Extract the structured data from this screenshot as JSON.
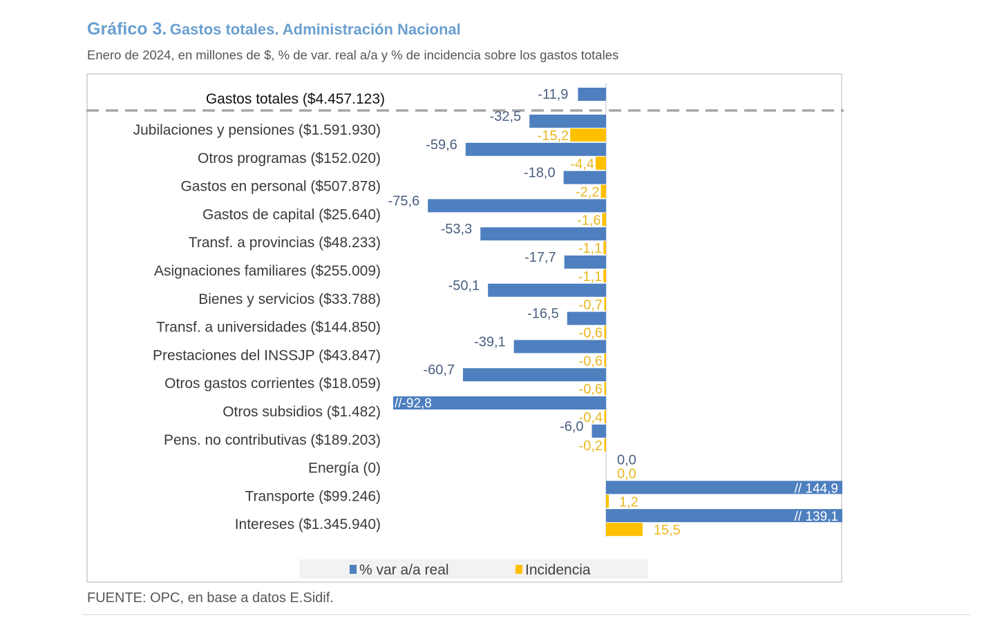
{
  "header": {
    "title_number": "Gráfico 3.",
    "title_text": "Gastos totales. Administración Nacional",
    "subtitle": "Enero de 2024, en millones de $, % de var. real a/a y % de incidencia sobre los gastos totales"
  },
  "footer": {
    "source": "FUENTE: OPC, en base a datos E.Sidif."
  },
  "colors": {
    "var": "#4e7fbf",
    "incidencia": "#ffc000",
    "title": "#6a9fd0",
    "label_var": "#4a5f80",
    "label_inc": "#e8b820"
  },
  "chart_data": {
    "type": "bar",
    "orientation": "horizontal",
    "title": "Gráfico 3. Gastos totales. Administración Nacional",
    "subtitle": "Enero de 2024, en millones de $, % de var. real a/a y % de incidencia sobre los gastos totales",
    "total": {
      "label": "Gastos totales ($4.457.123)",
      "var": -11.9,
      "var_label": "-11,9"
    },
    "categories": [
      "Jubilaciones y pensiones ($1.591.930)",
      "Otros programas ($152.020)",
      "Gastos en personal ($507.878)",
      "Gastos de capital ($25.640)",
      "Transf. a provincias ($48.233)",
      "Asignaciones familiares ($255.009)",
      "Bienes y servicios ($33.788)",
      "Transf. a universidades ($144.850)",
      "Prestaciones del INSSJP ($43.847)",
      "Otros gastos corrientes ($18.059)",
      "Otros subsidios ($1.482)",
      "Pens. no contributivas ($189.203)",
      "Energía (0)",
      "Transporte ($99.246)",
      "Intereses ($1.345.940)"
    ],
    "series": [
      {
        "name": "% var a/a real",
        "values": [
          -32.5,
          -59.6,
          -18.0,
          -75.6,
          -53.3,
          -17.7,
          -50.1,
          -16.5,
          -39.1,
          -60.7,
          -92.8,
          -6.0,
          0.0,
          144.9,
          139.1
        ],
        "labels": [
          "-32,5",
          "-59,6",
          "-18,0",
          "-75,6",
          "-53,3",
          "-17,7",
          "-50,1",
          "-16,5",
          "-39,1",
          "-60,7",
          "//-92,8",
          "-6,0",
          "0,0",
          "// 144,9",
          "// 139,1"
        ],
        "truncated": [
          false,
          false,
          false,
          false,
          false,
          false,
          false,
          false,
          false,
          false,
          true,
          false,
          false,
          true,
          true
        ]
      },
      {
        "name": "Incidencia",
        "values": [
          -15.2,
          -4.4,
          -2.2,
          -1.6,
          -1.1,
          -1.1,
          -0.7,
          -0.6,
          -0.6,
          -0.6,
          -0.4,
          -0.2,
          0.0,
          1.2,
          15.5
        ],
        "labels": [
          "-15,2",
          "-4,4",
          "-2,2",
          "-1,6",
          "-1,1",
          "-1,1",
          "-0,7",
          "-0,6",
          "-0,6",
          "-0,6",
          "-0,4",
          "-0,2",
          "0,0",
          "1,2",
          "15,5"
        ]
      }
    ],
    "legend": {
      "position": "bottom",
      "entries": [
        "% var a/a real",
        "Incidencia"
      ]
    },
    "grid": false,
    "axis_visible": false
  }
}
